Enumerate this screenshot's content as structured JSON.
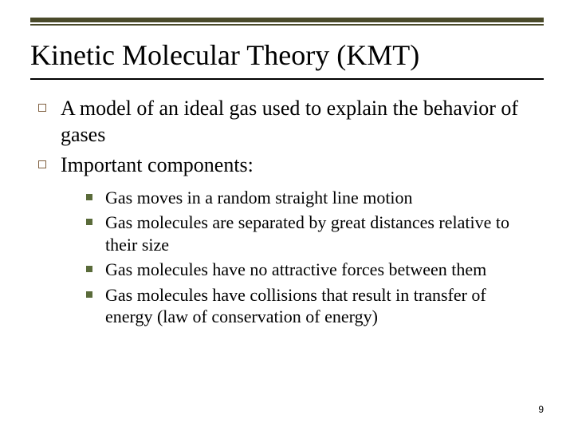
{
  "title": "Kinetic Molecular Theory (KMT)",
  "colors": {
    "top_rule": "#4a4a2a",
    "title_underline": "#000000",
    "open_square_border": "#806040",
    "solid_square_fill": "#5a6b3a",
    "background": "#ffffff",
    "text": "#000000"
  },
  "typography": {
    "title_fontsize": 36,
    "level1_fontsize": 26,
    "level2_fontsize": 22,
    "page_number_fontsize": 12,
    "title_font": "Times New Roman",
    "body_font": "Times New Roman"
  },
  "bullets": {
    "level1": [
      "A model of an ideal gas used to explain the behavior of gases",
      "Important components:"
    ],
    "level2": [
      "Gas moves in a random straight line motion",
      "Gas molecules are separated by great distances relative to their size",
      "Gas molecules have no attractive forces between them",
      "Gas molecules have collisions that result in transfer of energy (law of conservation of energy)"
    ]
  },
  "page_number": "9"
}
